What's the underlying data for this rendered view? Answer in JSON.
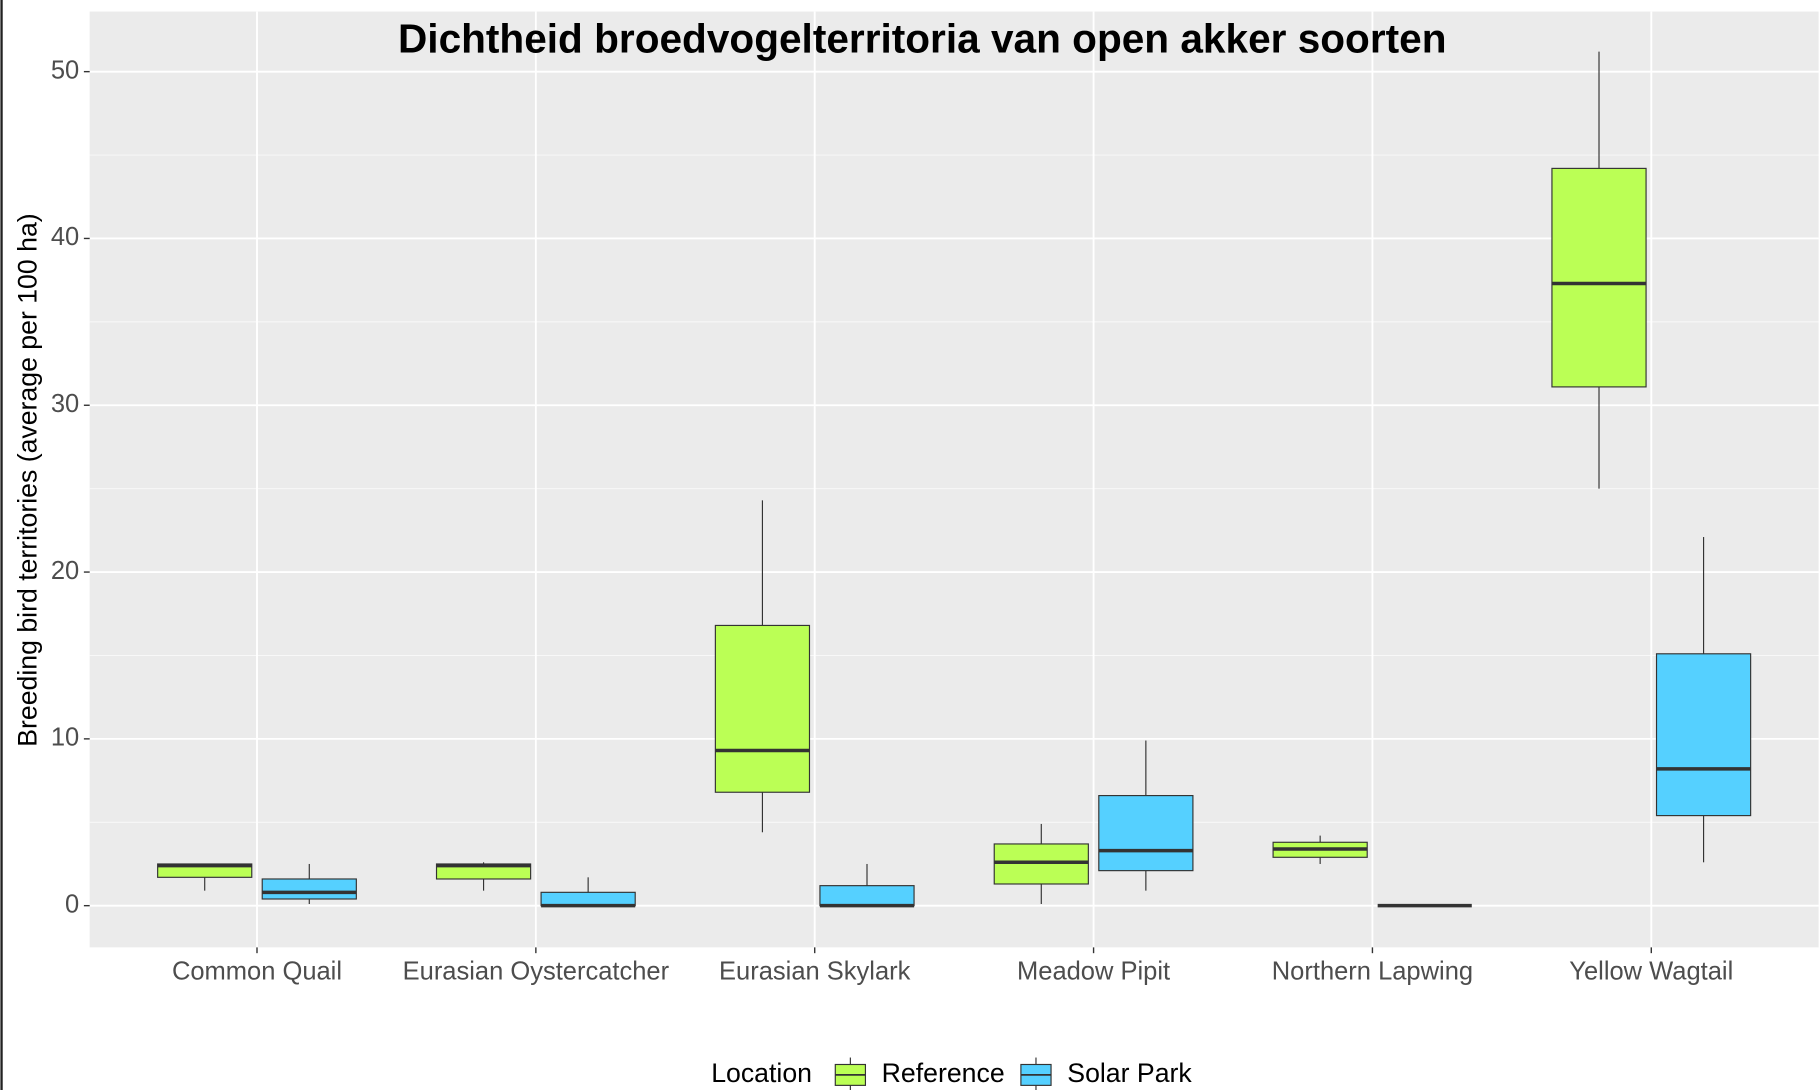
{
  "chart_data": {
    "type": "box",
    "title": "Dichtheid broedvogelterritoria van open akker soorten",
    "y_label": "Breeding bird territories (average per 100 ha)",
    "legend_title": "Location",
    "legend_position": "bottom",
    "categories": [
      "Common Quail",
      "Eurasian Oystercatcher",
      "Eurasian Skylark",
      "Meadow Pipit",
      "Northern Lapwing",
      "Yellow Wagtail"
    ],
    "series": [
      {
        "name": "Reference",
        "color": "#bbff55",
        "whisker_low": [
          0.9,
          0.9,
          4.4,
          0.1,
          2.5,
          25.0
        ],
        "q1": [
          1.7,
          1.6,
          6.8,
          1.3,
          2.9,
          31.1
        ],
        "median": [
          2.4,
          2.4,
          9.3,
          2.6,
          3.4,
          37.3
        ],
        "q3": [
          2.5,
          2.5,
          16.8,
          3.7,
          3.8,
          44.2
        ],
        "whisker_high": [
          2.5,
          2.6,
          24.3,
          4.9,
          4.2,
          51.2
        ]
      },
      {
        "name": "Solar Park",
        "color": "#55d0ff",
        "whisker_low": [
          0.1,
          0,
          0,
          0.9,
          0,
          2.6
        ],
        "q1": [
          0.4,
          0,
          0,
          2.1,
          0,
          5.4
        ],
        "median": [
          0.8,
          0,
          0,
          3.3,
          0,
          8.2
        ],
        "q3": [
          1.6,
          0.8,
          1.2,
          6.6,
          0,
          15.1
        ],
        "whisker_high": [
          2.5,
          1.7,
          2.5,
          9.9,
          0,
          22.1
        ]
      }
    ],
    "ylim": [
      -2.5,
      53.6
    ],
    "yticks": [
      0,
      10,
      20,
      30,
      40,
      50
    ],
    "minor_yticks": [
      5,
      15,
      25,
      35,
      45
    ],
    "grid": true
  }
}
